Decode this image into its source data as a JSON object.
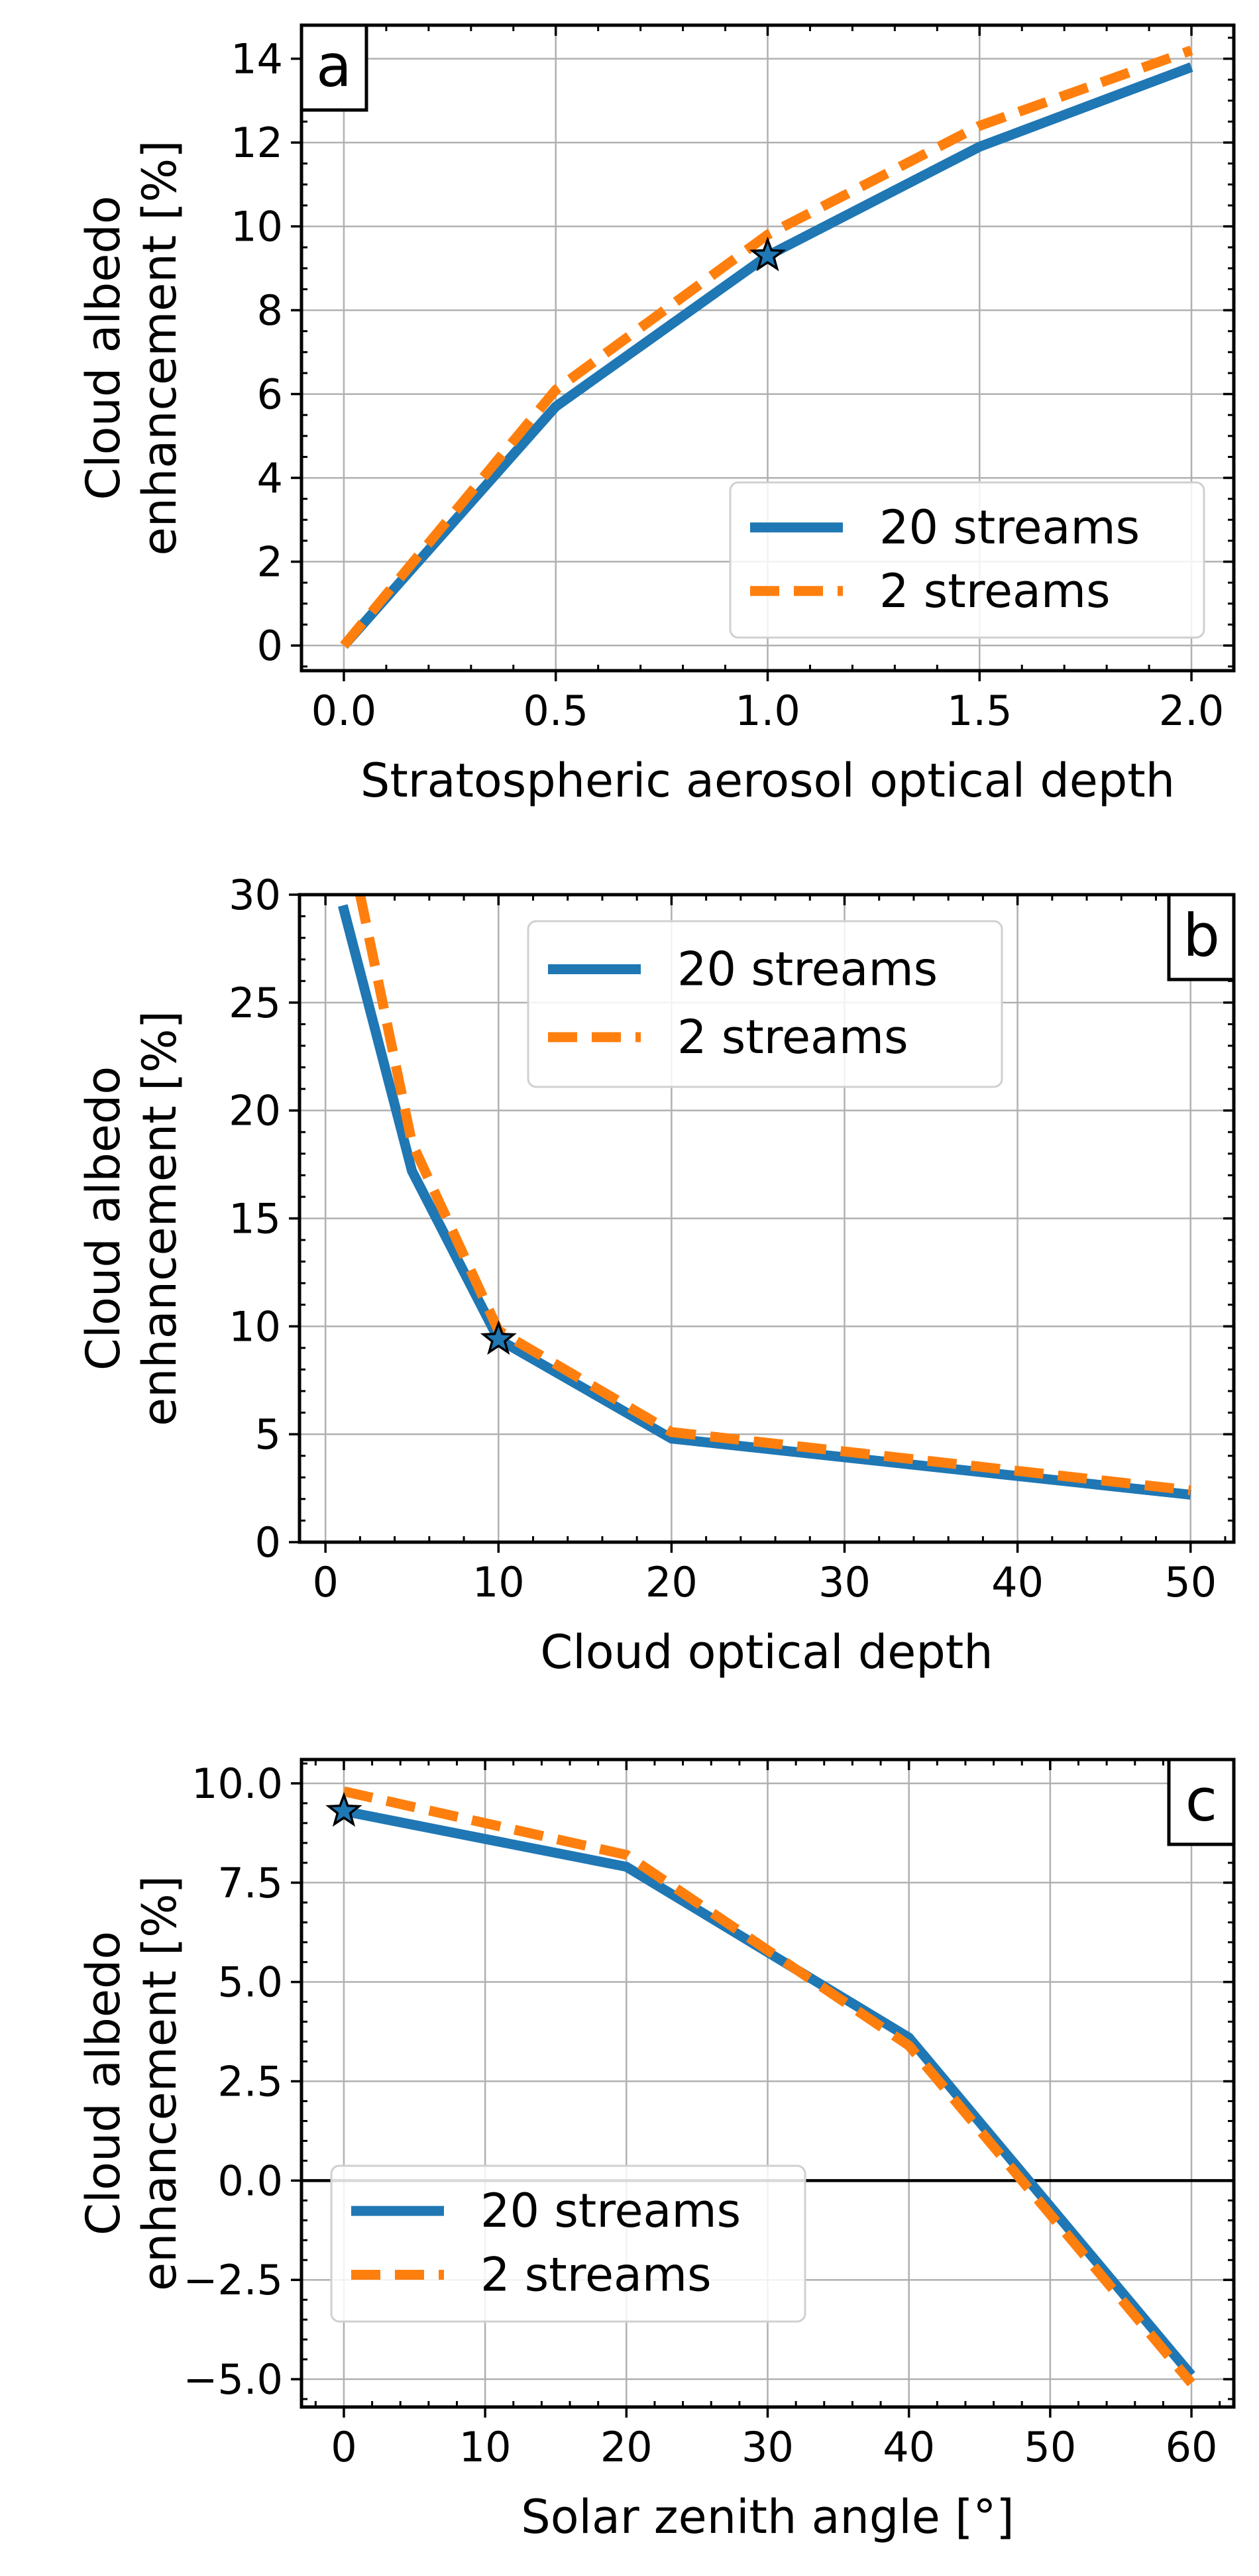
{
  "colors": {
    "series_20": "#1f77b4",
    "series_2": "#ff7f0e",
    "grid": "#b0b0b0",
    "axes": "#000000",
    "star_fill": "#1f77b4"
  },
  "chart_data": [
    {
      "panel_letter": "a",
      "type": "line",
      "xlabel": "Stratospheric aerosol optical depth",
      "ylabel_lines": [
        "Cloud albedo",
        "enhancement [%]"
      ],
      "xlim": [
        -0.1,
        2.1
      ],
      "ylim": [
        -0.6,
        14.8
      ],
      "xticks": [
        0.0,
        0.5,
        1.0,
        1.5,
        2.0
      ],
      "xtick_labels": [
        "0.0",
        "0.5",
        "1.0",
        "1.5",
        "2.0"
      ],
      "yticks": [
        0,
        2,
        4,
        6,
        8,
        10,
        12,
        14
      ],
      "ytick_labels": [
        "0",
        "2",
        "4",
        "6",
        "8",
        "10",
        "12",
        "14"
      ],
      "x_minor_step": 0.1,
      "y_minor_step": 0.5,
      "grid": true,
      "legend_position": "lower-right",
      "zero_line": false,
      "series": [
        {
          "name": "20 streams",
          "style": "solid",
          "x": [
            0.0,
            0.5,
            1.0,
            1.5,
            2.0
          ],
          "y": [
            0.0,
            5.7,
            9.3,
            11.9,
            13.8
          ]
        },
        {
          "name": "2 streams",
          "style": "dashed",
          "x": [
            0.0,
            0.5,
            1.0,
            1.5,
            2.0
          ],
          "y": [
            0.0,
            6.1,
            9.8,
            12.4,
            14.2
          ]
        }
      ],
      "star": {
        "x": 1.0,
        "y": 9.3
      }
    },
    {
      "panel_letter": "b",
      "type": "line",
      "xlabel": "Cloud optical depth",
      "ylabel_lines": [
        "Cloud albedo",
        "enhancement [%]"
      ],
      "xlim": [
        -1.5,
        52.5
      ],
      "ylim": [
        0,
        30
      ],
      "xticks": [
        0,
        10,
        20,
        30,
        40,
        50
      ],
      "xtick_labels": [
        "0",
        "10",
        "20",
        "30",
        "40",
        "50"
      ],
      "yticks": [
        0,
        5,
        10,
        15,
        20,
        25,
        30
      ],
      "ytick_labels": [
        "0",
        "5",
        "10",
        "15",
        "20",
        "25",
        "30"
      ],
      "x_minor_step": 2,
      "y_minor_step": 1,
      "grid": true,
      "legend_position": "upper-center",
      "zero_line": false,
      "series": [
        {
          "name": "20 streams",
          "style": "solid",
          "x": [
            1,
            5,
            10,
            20,
            50
          ],
          "y": [
            29.5,
            17.2,
            9.4,
            4.8,
            2.2
          ]
        },
        {
          "name": "2 streams",
          "style": "dashed",
          "x": [
            2,
            5,
            10,
            20,
            50
          ],
          "y": [
            30.0,
            18.5,
            9.8,
            5.1,
            2.4
          ]
        }
      ],
      "star": {
        "x": 10,
        "y": 9.4
      }
    },
    {
      "panel_letter": "c",
      "type": "line",
      "xlabel": "Solar zenith angle [°]",
      "ylabel_lines": [
        "Cloud albedo",
        "enhancement [%]"
      ],
      "xlim": [
        -3,
        63
      ],
      "ylim": [
        -5.7,
        10.6
      ],
      "xticks": [
        0,
        10,
        20,
        30,
        40,
        50,
        60
      ],
      "xtick_labels": [
        "0",
        "10",
        "20",
        "30",
        "40",
        "50",
        "60"
      ],
      "yticks": [
        -5.0,
        -2.5,
        0.0,
        2.5,
        5.0,
        7.5,
        10.0
      ],
      "ytick_labels": [
        "−5.0",
        "−2.5",
        "0.0",
        "2.5",
        "5.0",
        "7.5",
        "10.0"
      ],
      "x_minor_step": 2,
      "y_minor_step": 0.5,
      "grid": true,
      "legend_position": "lower-left",
      "zero_line": true,
      "series": [
        {
          "name": "20 streams",
          "style": "solid",
          "x": [
            0,
            20,
            40,
            60
          ],
          "y": [
            9.3,
            7.9,
            3.6,
            -4.9
          ]
        },
        {
          "name": "2 streams",
          "style": "dashed",
          "x": [
            0,
            20,
            40,
            60
          ],
          "y": [
            9.8,
            8.2,
            3.4,
            -5.1
          ]
        }
      ],
      "star": {
        "x": 0,
        "y": 9.3
      }
    }
  ]
}
